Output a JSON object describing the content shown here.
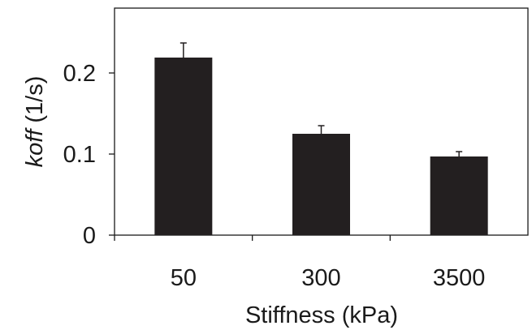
{
  "chart_data": {
    "type": "bar",
    "categories": [
      "50",
      "300",
      "3500"
    ],
    "values": [
      0.219,
      0.125,
      0.097
    ],
    "error": [
      0.018,
      0.01,
      0.006
    ],
    "xlabel": "Stiffness (kPa)",
    "ylabel_italic": "koff",
    "ylabel_rest": " (1/s)",
    "ylim": [
      0,
      0.28
    ],
    "yticks": [
      0,
      0.1,
      0.2
    ],
    "ytick_labels": [
      "0",
      "0.1",
      "0.2"
    ],
    "grid": false,
    "legend": "none",
    "colors": {
      "bar": "#231f20",
      "axis": "#1a1a1a"
    }
  }
}
